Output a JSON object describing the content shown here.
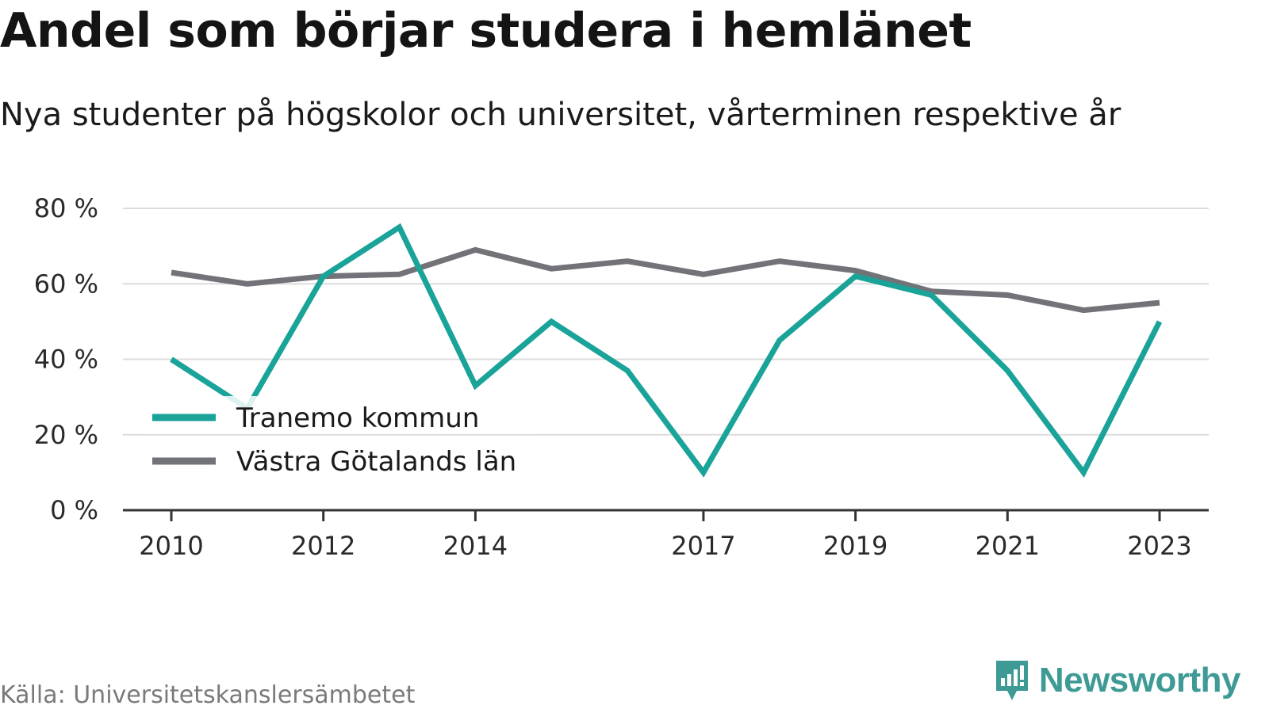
{
  "header": {
    "title": "Andel som börjar studera i hemlänet",
    "subtitle": "Nya studenter på högskolor och universitet, vårterminen respektive år"
  },
  "footer": {
    "source": "Källa: Universitetskanslersämbetet",
    "brand": "Newsworthy",
    "brand_icon": "bar-chart-logo-icon",
    "brand_color": "#3e9a95"
  },
  "chart_data": {
    "type": "line",
    "x": [
      2010,
      2011,
      2012,
      2013,
      2014,
      2015,
      2016,
      2017,
      2018,
      2019,
      2020,
      2021,
      2022,
      2023
    ],
    "x_tick_values": [
      2010,
      2012,
      2014,
      2017,
      2019,
      2021,
      2023
    ],
    "x_tick_labels": [
      "2010",
      "2012",
      "2014",
      "2017",
      "2019",
      "2021",
      "2023"
    ],
    "y_tick_values": [
      0,
      20,
      40,
      60,
      80
    ],
    "y_tick_labels": [
      "0 %",
      "20 %",
      "40 %",
      "60 %",
      "80 %"
    ],
    "ylim": [
      0,
      80
    ],
    "grid": true,
    "legend_position": "bottom-left",
    "series": [
      {
        "name": "Tranemo kommun",
        "color": "#1aa399",
        "values": [
          40,
          27,
          62,
          75,
          33,
          50,
          37,
          10,
          45,
          62,
          57,
          37,
          10,
          50
        ]
      },
      {
        "name": "Västra Götalands län",
        "color": "#727279",
        "values": [
          63,
          60,
          62,
          62.5,
          69,
          64,
          66,
          62.5,
          66,
          63.5,
          58,
          57,
          53,
          55
        ]
      }
    ]
  }
}
